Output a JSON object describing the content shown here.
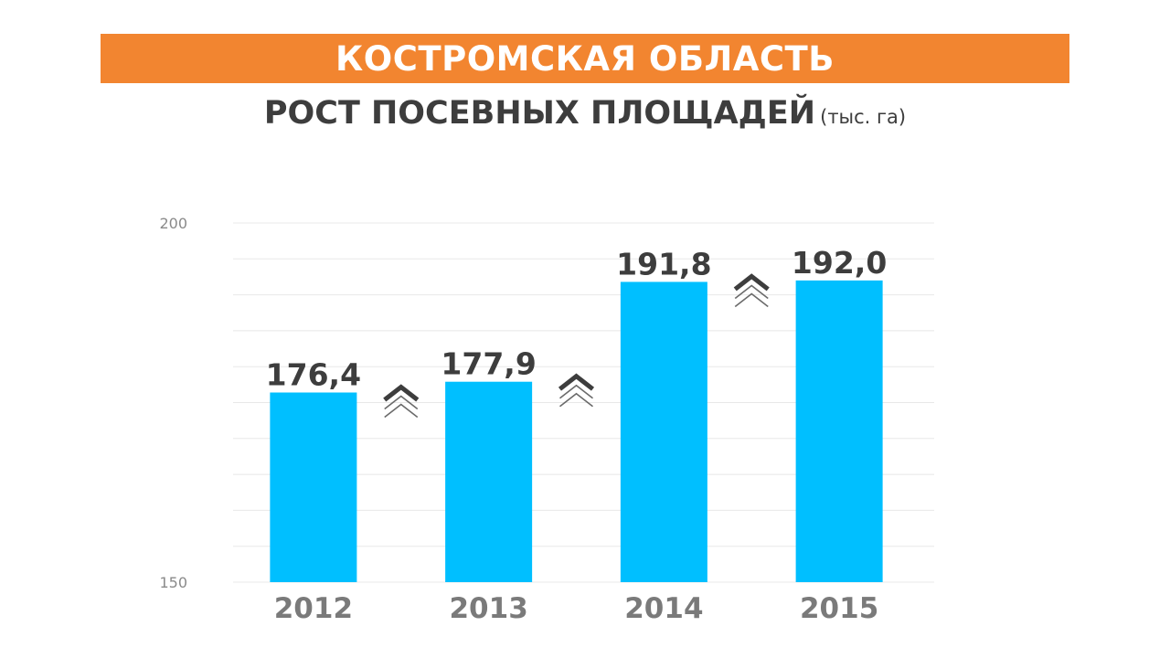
{
  "colors": {
    "banner": "#F28530",
    "bar": "#00BFFF",
    "gridline": "#E8E8E8",
    "value_label": "#3D3D3D",
    "category_label": "#7A7A7A",
    "tick_label": "#8A8A8A",
    "arrow_dark": "#3D3D3D",
    "arrow_outline": "#6A6A6A"
  },
  "header": {
    "banner_title": "КОСТРОМСКАЯ ОБЛАСТЬ",
    "title": "РОСТ ПОСЕВНЫХ ПЛОЩАДЕЙ",
    "unit": "(тыс. га)"
  },
  "chart_data": {
    "type": "bar",
    "title": "РОСТ ПОСЕВНЫХ ПЛОЩАДЕЙ (тыс. га)",
    "categories": [
      "2012",
      "2013",
      "2014",
      "2015"
    ],
    "values": [
      176.4,
      177.9,
      191.8,
      192.0
    ],
    "value_labels": [
      "176,4",
      "177,9",
      "191,8",
      "192,0"
    ],
    "ylim": [
      150,
      200
    ],
    "y_ticks": [
      150,
      200
    ],
    "y_tick_labels": [
      "150",
      "200"
    ],
    "grid": true,
    "legend": "none",
    "annotations": [
      "up-arrow-icon",
      "up-arrow-icon",
      "up-arrow-icon"
    ],
    "xlabel": "",
    "ylabel": ""
  }
}
